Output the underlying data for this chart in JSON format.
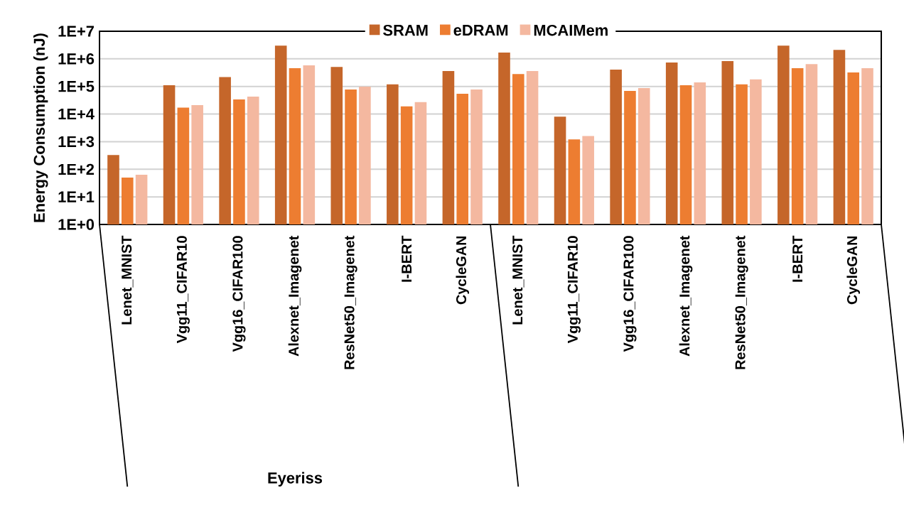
{
  "chart_data": {
    "type": "bar",
    "ylabel": "Energy Consumption (nJ)",
    "log": "y",
    "ylim": [
      1,
      10000000
    ],
    "yticks": [
      {
        "value": 1,
        "label": "1E+0"
      },
      {
        "value": 10,
        "label": "1E+1"
      },
      {
        "value": 100,
        "label": "1E+2"
      },
      {
        "value": 1000,
        "label": "1E+3"
      },
      {
        "value": 10000,
        "label": "1E+4"
      },
      {
        "value": 100000,
        "label": "1E+5"
      },
      {
        "value": 1000000,
        "label": "1E+6"
      },
      {
        "value": 10000000,
        "label": "1E+7"
      }
    ],
    "grid": "y",
    "legend": "top",
    "categories": [
      "Lenet_MNIST",
      "Vgg11_CIFAR10",
      "Vgg16_CIFAR100",
      "Alexnet_Imagenet",
      "ResNet50_Imagenet",
      "I-BERT",
      "CycleGAN",
      "Lenet_MNIST",
      "Vgg11_CIFAR10",
      "Vgg16_CIFAR100",
      "Alexnet_Imagenet",
      "ResNet50_Imagenet",
      "I-BERT",
      "CycleGAN"
    ],
    "annotations": [
      "Eyeriss"
    ],
    "series": [
      {
        "name": "SRAM",
        "color": "#c5662a",
        "values": [
          330,
          110000,
          220000,
          3000000,
          510000,
          120000,
          360000,
          1700000,
          8100,
          410000,
          740000,
          830000,
          3000000,
          2100000
        ]
      },
      {
        "name": "eDRAM",
        "color": "#ed7d31",
        "values": [
          50,
          17000,
          34000,
          460000,
          78000,
          19000,
          54000,
          280000,
          1200,
          69000,
          110000,
          120000,
          460000,
          320000
        ]
      },
      {
        "name": "MCAIMem",
        "color": "#f4b8a0",
        "values": [
          63,
          21000,
          43000,
          580000,
          98000,
          27000,
          78000,
          360000,
          1600,
          87000,
          140000,
          180000,
          650000,
          460000
        ]
      }
    ]
  }
}
